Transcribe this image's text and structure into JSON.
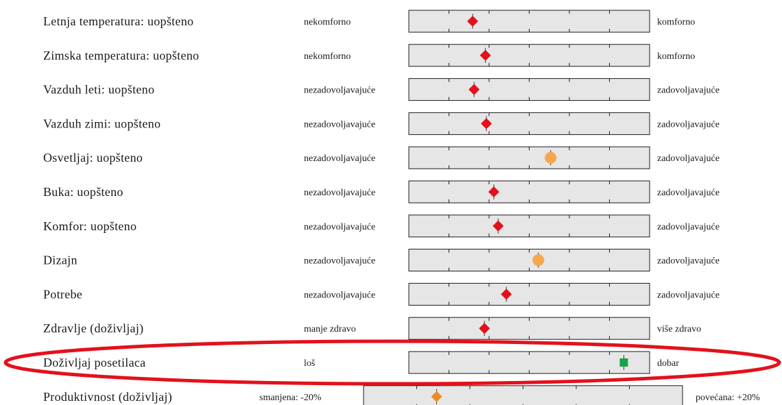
{
  "chart_data": {
    "type": "scatter",
    "scale": "relative position between left and right anchor (0 = left, 1 = right)",
    "rows": [
      {
        "label": "Letnja temperatura: uopšteno",
        "left": "nekomforno",
        "right": "komforno",
        "value": 0.265,
        "marker": "diamond",
        "color": "#e3111b"
      },
      {
        "label": "Zimska temperatura: uopšteno",
        "left": "nekomforno",
        "right": "komforno",
        "value": 0.318,
        "marker": "diamond",
        "color": "#e3111b"
      },
      {
        "label": "Vazduh leti: uopšteno",
        "left": "nezadovoljavajuće",
        "right": "zadovoljavajuće",
        "value": 0.271,
        "marker": "diamond",
        "color": "#e3111b"
      },
      {
        "label": "Vazduh zimi: uopšteno",
        "left": "nezadovoljavajuće",
        "right": "zadovoljavajuće",
        "value": 0.322,
        "marker": "diamond",
        "color": "#e3111b"
      },
      {
        "label": "Osvetljaj: uopšteno",
        "left": "nezadovoljavajuće",
        "right": "zadovoljavajuće",
        "value": 0.589,
        "marker": "circle",
        "color": "#f5a84b"
      },
      {
        "label": "Buka: uopšteno",
        "left": "nezadovoljavajuće",
        "right": "zadovoljavajuće",
        "value": 0.353,
        "marker": "diamond",
        "color": "#e3111b"
      },
      {
        "label": "Komfor: uopšteno",
        "left": "nezadovoljavajuće",
        "right": "zadovoljavajuće",
        "value": 0.371,
        "marker": "diamond",
        "color": "#e3111b"
      },
      {
        "label": "Dizajn",
        "left": "nezadovoljavajuće",
        "right": "zadovoljavajuće",
        "value": 0.538,
        "marker": "circle",
        "color": "#f5a84b"
      },
      {
        "label": "Potrebe",
        "left": "nezadovoljavajuće",
        "right": "zadovoljavajuće",
        "value": 0.405,
        "marker": "diamond",
        "color": "#e3111b"
      },
      {
        "label": "Zdravlje (doživljaj)",
        "left": "manje zdravo",
        "right": "više zdravo",
        "value": 0.314,
        "marker": "diamond",
        "color": "#e3111b"
      },
      {
        "label": "Doživljaj posetilaca",
        "left": "loš",
        "right": "dobar",
        "value": 0.893,
        "marker": "square",
        "color": "#1aa14a"
      },
      {
        "label": "Produktivnost (doživljaj)",
        "left": "smanjena: -20%",
        "right": "povećana: +20%",
        "value": 0.229,
        "marker": "diamond",
        "color": "#f08a24"
      }
    ],
    "highlight": {
      "row": 10,
      "color": "#e3111b"
    }
  }
}
